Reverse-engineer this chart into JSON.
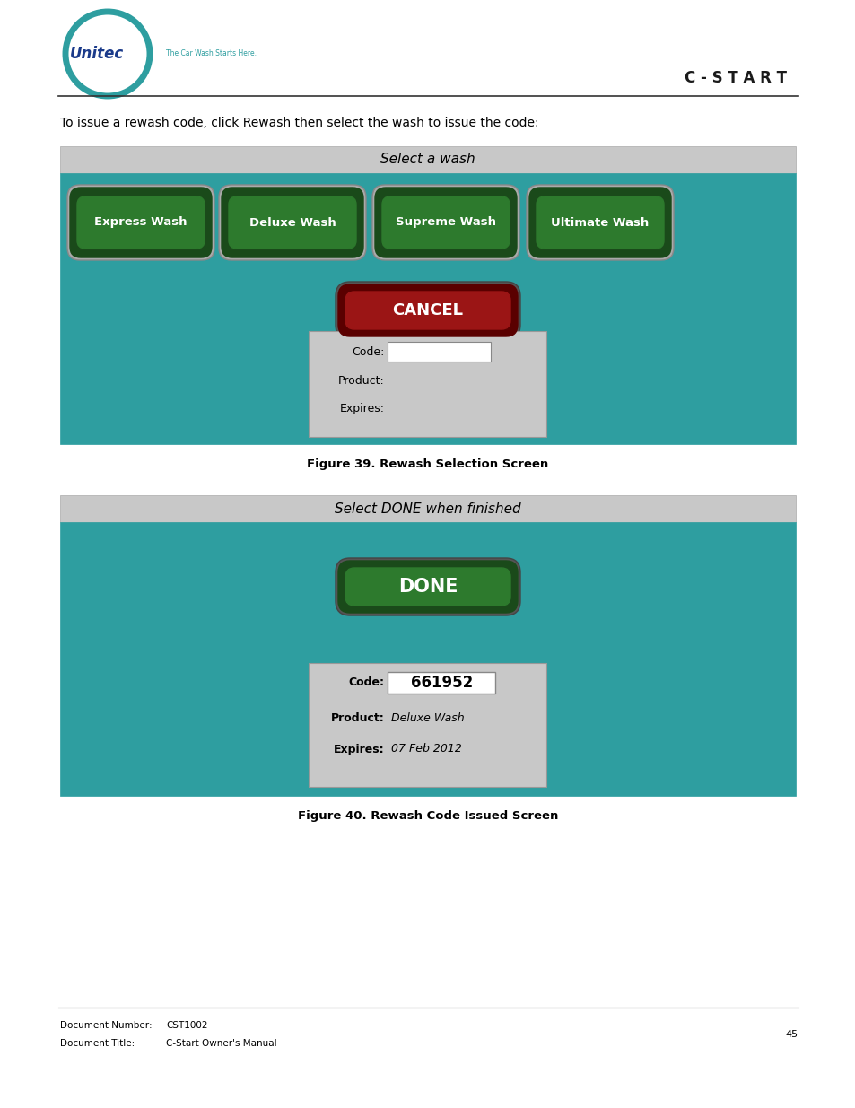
{
  "bg_color": "#ffffff",
  "teal_color": "#2e9ea0",
  "header_gray": "#c8c8c8",
  "info_box_color": "#c8c8c8",
  "white": "#ffffff",
  "header_text": "C - S T A R T",
  "intro_text": "To issue a rewash code, click Rewash then select the wash to issue the code:",
  "fig1_title": "Select a wash",
  "fig1_buttons": [
    "Express Wash",
    "Deluxe Wash",
    "Supreme Wash",
    "Ultimate Wash"
  ],
  "fig1_cancel": "CANCEL",
  "fig1_caption": "Figure 39. Rewash Selection Screen",
  "fig2_title": "Select DONE when finished",
  "fig2_done": "DONE",
  "fig2_code": "661952",
  "fig2_product": "Deluxe Wash",
  "fig2_expires": "07 Feb 2012",
  "fig2_caption": "Figure 40. Rewash Code Issued Screen",
  "doc_number_label": "Document Number:",
  "doc_number_value": "CST1002",
  "doc_title_label": "Document Title:",
  "doc_title_value": "C-Start Owner's Manual",
  "page_number": "45"
}
